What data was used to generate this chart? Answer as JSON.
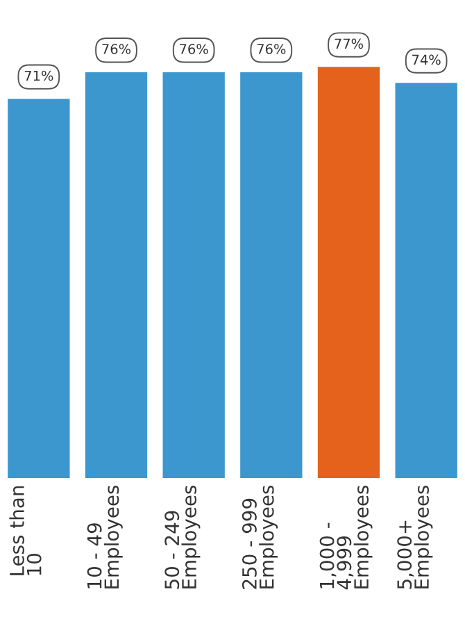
{
  "chart_data": {
    "type": "bar",
    "categories": [
      "Less than\n10",
      "10 - 49\nEmployees",
      "50 - 249\nEmployees",
      "250 - 999\nEmployees",
      "1,000 -\n4,999\nEmployees",
      "5,000+\nEmployees"
    ],
    "values": [
      71,
      76,
      76,
      76,
      77,
      74
    ],
    "colors": [
      "#3d97cf",
      "#3d97cf",
      "#3d97cf",
      "#3d97cf",
      "#e4621c",
      "#3d97cf"
    ],
    "value_labels": [
      "71%",
      "76%",
      "76%",
      "76%",
      "77%",
      "74%"
    ]
  }
}
